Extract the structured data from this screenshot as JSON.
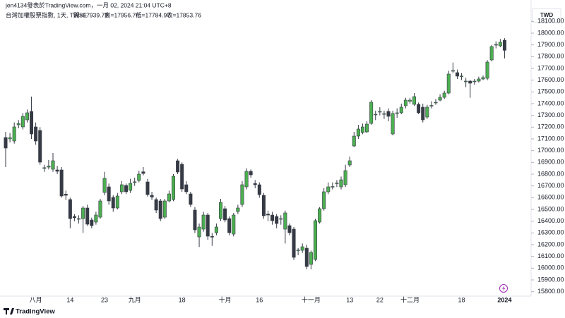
{
  "chart_data": {
    "type": "candlestick",
    "header": "jen4134發表於TradingView.com，一月 02, 2024 21:04 UTC+8",
    "subtitle": "台灣加權股票指數, 1天, TWSE",
    "ohlc_labels": [
      "開=17939.79",
      "高=17956.74",
      "低=17784.97",
      "收=17853.76"
    ],
    "currency": "TWD",
    "categories": [
      null,
      null,
      null,
      null,
      null,
      null,
      null,
      "八月",
      null,
      null,
      null,
      null,
      null,
      null,
      null,
      "14",
      null,
      null,
      null,
      null,
      null,
      null,
      null,
      "23",
      null,
      null,
      null,
      null,
      null,
      null,
      "九月",
      null,
      null,
      null,
      null,
      null,
      null,
      null,
      null,
      null,
      null,
      "18",
      null,
      null,
      null,
      null,
      null,
      null,
      null,
      null,
      null,
      "十月",
      null,
      null,
      null,
      null,
      null,
      null,
      null,
      "16",
      null,
      null,
      null,
      null,
      null,
      null,
      null,
      null,
      null,
      null,
      null,
      "十一月",
      null,
      null,
      null,
      null,
      null,
      null,
      null,
      null,
      "13",
      null,
      null,
      null,
      null,
      null,
      null,
      "22",
      null,
      null,
      null,
      null,
      null,
      null,
      "十二月",
      null,
      null,
      null,
      null,
      null,
      null,
      null,
      null,
      null,
      null,
      null,
      "18",
      null,
      null,
      null,
      null,
      null,
      null,
      null,
      null,
      null,
      "2024"
    ],
    "open": [
      17112,
      17100,
      17082,
      17220,
      17202,
      17262,
      17334,
      17202,
      17172,
      16850,
      16860,
      16842,
      16836,
      16836,
      16630,
      16584,
      16440,
      16420,
      16422,
      16512,
      16410,
      16392,
      16434,
      16644,
      16692,
      16602,
      16512,
      16650,
      16704,
      16662,
      16730,
      16746,
      16820,
      16734,
      16620,
      16584,
      16572,
      16434,
      16572,
      16584,
      16914,
      16884,
      16710,
      16632,
      16494,
      16266,
      16332,
      16452,
      16270,
      16302,
      16422,
      16506,
      16422,
      16290,
      16482,
      16542,
      16692,
      16824,
      16720,
      16710,
      16620,
      16460,
      16452,
      16440,
      16420,
      16332,
      16362,
      16332,
      16150,
      16152,
      16170,
      16032,
      16074,
      16392,
      16506,
      16650,
      16690,
      16720,
      16692,
      16710,
      16878,
      17040,
      17124,
      17154,
      17160,
      17232,
      17310,
      17330,
      17310,
      17334,
      17142,
      17320,
      17322,
      17382,
      17420,
      17394,
      17394,
      17370,
      17286,
      17380,
      17410,
      17430,
      17454,
      17490,
      17680,
      17664,
      17630,
      17590,
      17592,
      17590,
      17592,
      17610,
      17616,
      17772,
      17900,
      17892,
      17939.79
    ],
    "high": [
      17160,
      17150,
      17240,
      17260,
      17320,
      17350,
      17460,
      17240,
      17200,
      16880,
      16920,
      16980,
      16870,
      16860,
      16660,
      16600,
      16460,
      16450,
      16530,
      16540,
      16430,
      16480,
      16590,
      16820,
      16720,
      16620,
      16640,
      16740,
      16720,
      16760,
      16770,
      16830,
      16860,
      16760,
      16650,
      16600,
      16590,
      16590,
      16660,
      16800,
      16930,
      16900,
      16740,
      16650,
      16520,
      16380,
      16480,
      16470,
      16300,
      16380,
      16590,
      16530,
      16440,
      16470,
      16540,
      16740,
      16850,
      16840,
      16750,
      16730,
      16640,
      16490,
      16480,
      16460,
      16450,
      16490,
      16380,
      16350,
      16170,
      16210,
      16200,
      16150,
      16420,
      16520,
      16680,
      16730,
      16730,
      16750,
      16780,
      16880,
      16950,
      17160,
      17220,
      17230,
      17250,
      17430,
      17340,
      17370,
      17340,
      17360,
      17340,
      17360,
      17400,
      17450,
      17450,
      17490,
      17410,
      17400,
      17390,
      17420,
      17440,
      17480,
      17510,
      17680,
      17750,
      17690,
      17660,
      17620,
      17600,
      17610,
      17630,
      17640,
      17770,
      17900,
      17930,
      17950,
      17956.74
    ],
    "low": [
      16860,
      17070,
      17060,
      17190,
      17180,
      17240,
      17100,
      17050,
      16880,
      16820,
      16840,
      16820,
      16800,
      16600,
      16580,
      16340,
      16400,
      16380,
      16300,
      16360,
      16340,
      16370,
      16420,
      16620,
      16540,
      16480,
      16500,
      16630,
      16630,
      16640,
      16700,
      16730,
      16790,
      16610,
      16580,
      16470,
      16400,
      16420,
      16560,
      16570,
      16800,
      16650,
      16630,
      16520,
      16300,
      16180,
      16310,
      16240,
      16190,
      16280,
      16400,
      16390,
      16280,
      16270,
      16460,
      16520,
      16670,
      16770,
      16680,
      16600,
      16420,
      16400,
      16370,
      16340,
      16370,
      16210,
      16280,
      16070,
      16110,
      16130,
      15990,
      15990,
      16060,
      16380,
      16490,
      16630,
      16670,
      16690,
      16670,
      16690,
      16860,
      17030,
      17100,
      17140,
      17150,
      17220,
      17260,
      17300,
      17270,
      17250,
      17130,
      17280,
      17310,
      17360,
      17400,
      17380,
      17310,
      17240,
      17270,
      17360,
      17390,
      17420,
      17440,
      17480,
      17660,
      17610,
      17600,
      17540,
      17450,
      17560,
      17580,
      17600,
      17600,
      17760,
      17870,
      17880,
      17784.97
    ],
    "close": [
      17022,
      17110,
      17202,
      17230,
      17292,
      17322,
      17142,
      17082,
      16902,
      16855,
      16870,
      16914,
      16824,
      16614,
      16620,
      16422,
      16430,
      16422,
      16512,
      16374,
      16362,
      16452,
      16572,
      16764,
      16572,
      16512,
      16614,
      16710,
      16650,
      16722,
      16735,
      16800,
      16806,
      16626,
      16605,
      16494,
      16422,
      16572,
      16632,
      16782,
      16818,
      16674,
      16650,
      16542,
      16326,
      16350,
      16452,
      16272,
      16266,
      16350,
      16560,
      16410,
      16302,
      16452,
      16512,
      16710,
      16824,
      16794,
      16710,
      16626,
      16446,
      16452,
      16404,
      16380,
      16422,
      16470,
      16302,
      16092,
      16155,
      16182,
      16014,
      16134,
      16404,
      16506,
      16650,
      16692,
      16695,
      16725,
      16752,
      16830,
      16914,
      17124,
      17184,
      17202,
      17226,
      17412,
      17310,
      17334,
      17315,
      17292,
      17316,
      17322,
      17370,
      17430,
      17430,
      17460,
      17322,
      17262,
      17370,
      17385,
      17412,
      17454,
      17490,
      17652,
      17682,
      17634,
      17635,
      17592,
      17574,
      17592,
      17610,
      17622,
      17754,
      17886,
      17904,
      17922,
      17853.76
    ],
    "up_color": "#4caf50",
    "down_color": "#363a45",
    "wick_color": "#363a45",
    "ylim": [
      15762,
      18282
    ],
    "yticks": [
      {
        "value": 15800,
        "label": "15800.00"
      },
      {
        "value": 15900,
        "label": "15900.00"
      },
      {
        "value": 16000,
        "label": "16000.00"
      },
      {
        "value": 16100,
        "label": "16100.00"
      },
      {
        "value": 16200,
        "label": "16200.00"
      },
      {
        "value": 16300,
        "label": "16300.00"
      },
      {
        "value": 16400,
        "label": "16400.00"
      },
      {
        "value": 16500,
        "label": "16500.00"
      },
      {
        "value": 16600,
        "label": "16600.00"
      },
      {
        "value": 16700,
        "label": "16700.00"
      },
      {
        "value": 16800,
        "label": "16800.00"
      },
      {
        "value": 16900,
        "label": "16900.00"
      },
      {
        "value": 17000,
        "label": "17000.00"
      },
      {
        "value": 17100,
        "label": "17100.00"
      },
      {
        "value": 17200,
        "label": "17200.00"
      },
      {
        "value": 17300,
        "label": "17300.00"
      },
      {
        "value": 17400,
        "label": "17400.00"
      },
      {
        "value": 17500,
        "label": "17500.00"
      },
      {
        "value": 17600,
        "label": "17600.00"
      },
      {
        "value": 17700,
        "label": "17700.00"
      },
      {
        "value": 17800,
        "label": "17800.00"
      },
      {
        "value": 17900,
        "label": "17900.00"
      },
      {
        "value": 18000,
        "label": "18000.00"
      },
      {
        "value": 18100,
        "label": "18100.00"
      }
    ],
    "grid": false
  },
  "branding": "TradingView"
}
